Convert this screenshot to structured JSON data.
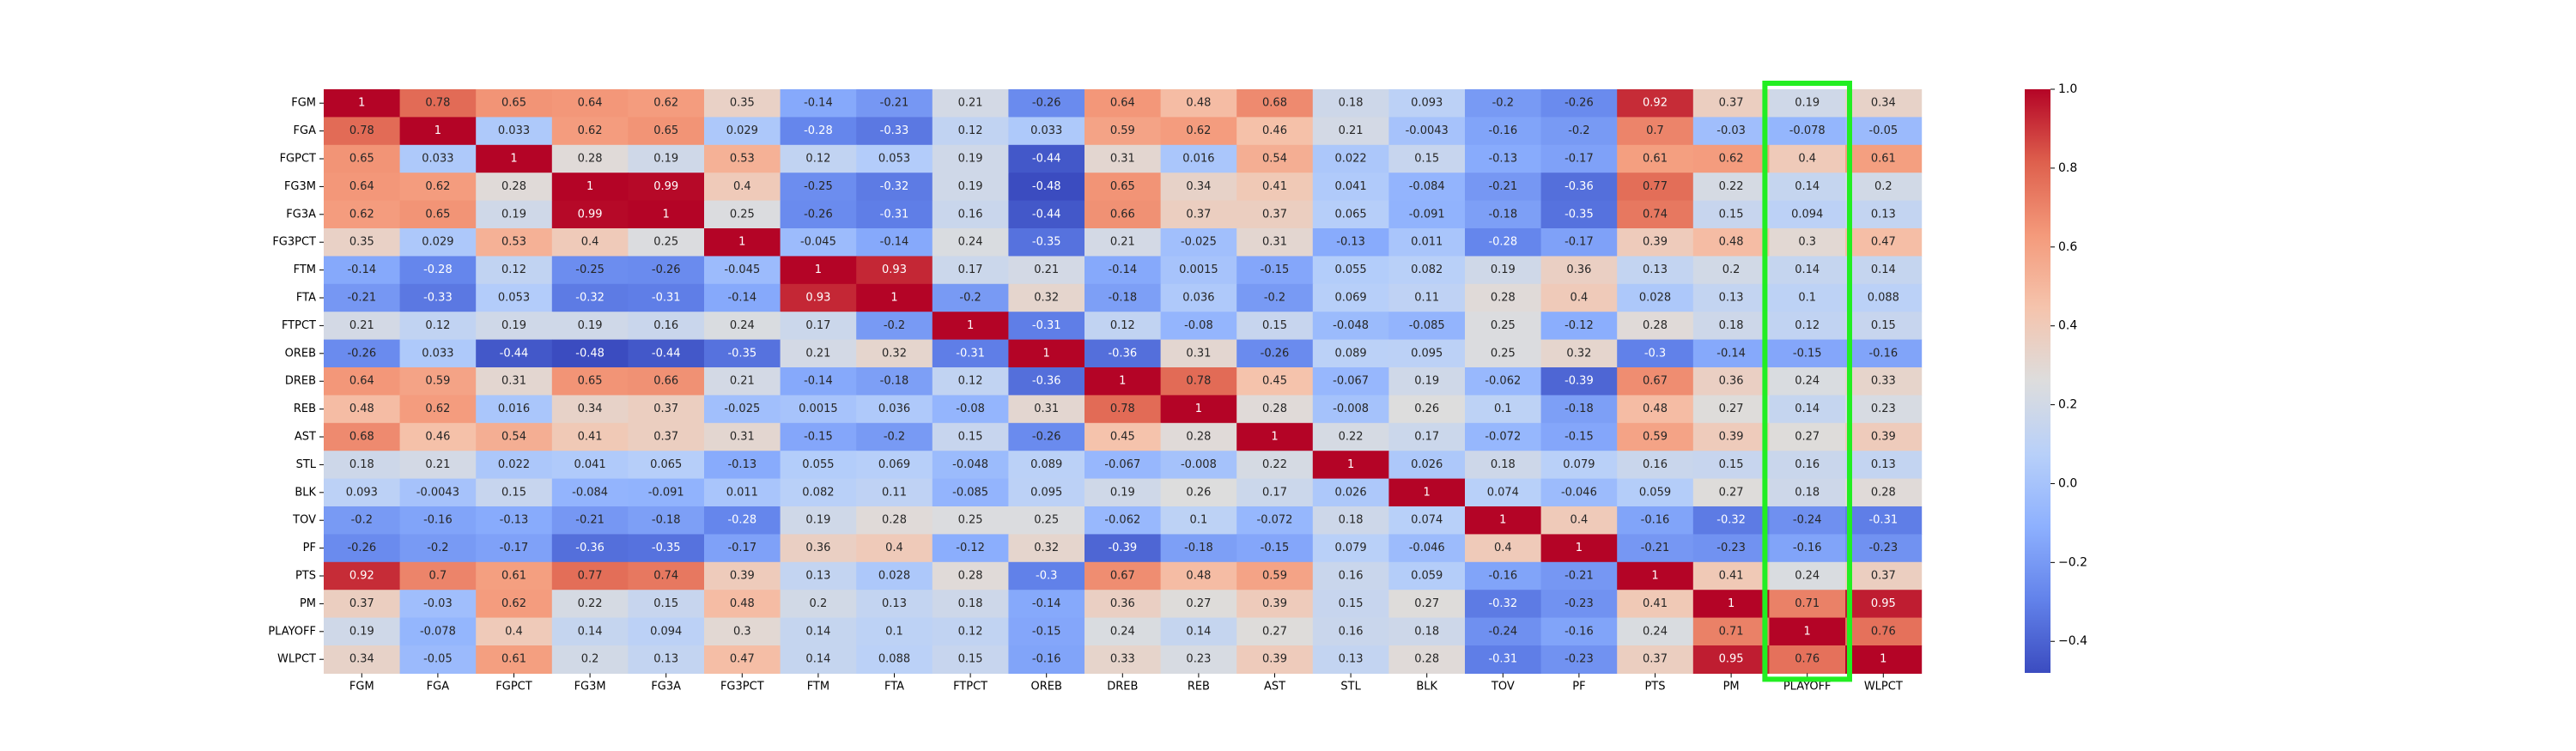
{
  "chart_data": {
    "type": "heatmap",
    "title": "",
    "xlabel": "",
    "ylabel": "",
    "labels": [
      "FGM",
      "FGA",
      "FGPCT",
      "FG3M",
      "FG3A",
      "FG3PCT",
      "FTM",
      "FTA",
      "FTPCT",
      "OREB",
      "DREB",
      "REB",
      "AST",
      "STL",
      "BLK",
      "TOV",
      "PF",
      "PTS",
      "PM",
      "PLAYOFF",
      "WLPCT"
    ],
    "matrix": [
      [
        "1",
        "0.78",
        "0.65",
        "0.64",
        "0.62",
        "0.35",
        "-0.14",
        "-0.21",
        "0.21",
        "-0.26",
        "0.64",
        "0.48",
        "0.68",
        "0.18",
        "0.093",
        "-0.2",
        "-0.26",
        "0.92",
        "0.37",
        "0.19",
        "0.34"
      ],
      [
        "0.78",
        "1",
        "0.033",
        "0.62",
        "0.65",
        "0.029",
        "-0.28",
        "-0.33",
        "0.12",
        "0.033",
        "0.59",
        "0.62",
        "0.46",
        "0.21",
        "-0.0043",
        "-0.16",
        "-0.2",
        "0.7",
        "-0.03",
        "-0.078",
        "-0.05"
      ],
      [
        "0.65",
        "0.033",
        "1",
        "0.28",
        "0.19",
        "0.53",
        "0.12",
        "0.053",
        "0.19",
        "-0.44",
        "0.31",
        "0.016",
        "0.54",
        "0.022",
        "0.15",
        "-0.13",
        "-0.17",
        "0.61",
        "0.62",
        "0.4",
        "0.61"
      ],
      [
        "0.64",
        "0.62",
        "0.28",
        "1",
        "0.99",
        "0.4",
        "-0.25",
        "-0.32",
        "0.19",
        "-0.48",
        "0.65",
        "0.34",
        "0.41",
        "0.041",
        "-0.084",
        "-0.21",
        "-0.36",
        "0.77",
        "0.22",
        "0.14",
        "0.2"
      ],
      [
        "0.62",
        "0.65",
        "0.19",
        "0.99",
        "1",
        "0.25",
        "-0.26",
        "-0.31",
        "0.16",
        "-0.44",
        "0.66",
        "0.37",
        "0.37",
        "0.065",
        "-0.091",
        "-0.18",
        "-0.35",
        "0.74",
        "0.15",
        "0.094",
        "0.13"
      ],
      [
        "0.35",
        "0.029",
        "0.53",
        "0.4",
        "0.25",
        "1",
        "-0.045",
        "-0.14",
        "0.24",
        "-0.35",
        "0.21",
        "-0.025",
        "0.31",
        "-0.13",
        "0.011",
        "-0.28",
        "-0.17",
        "0.39",
        "0.48",
        "0.3",
        "0.47"
      ],
      [
        "-0.14",
        "-0.28",
        "0.12",
        "-0.25",
        "-0.26",
        "-0.045",
        "1",
        "0.93",
        "0.17",
        "0.21",
        "-0.14",
        "0.0015",
        "-0.15",
        "0.055",
        "0.082",
        "0.19",
        "0.36",
        "0.13",
        "0.2",
        "0.14",
        "0.14"
      ],
      [
        "-0.21",
        "-0.33",
        "0.053",
        "-0.32",
        "-0.31",
        "-0.14",
        "0.93",
        "1",
        "-0.2",
        "0.32",
        "-0.18",
        "0.036",
        "-0.2",
        "0.069",
        "0.11",
        "0.28",
        "0.4",
        "0.028",
        "0.13",
        "0.1",
        "0.088"
      ],
      [
        "0.21",
        "0.12",
        "0.19",
        "0.19",
        "0.16",
        "0.24",
        "0.17",
        "-0.2",
        "1",
        "-0.31",
        "0.12",
        "-0.08",
        "0.15",
        "-0.048",
        "-0.085",
        "0.25",
        "-0.12",
        "0.28",
        "0.18",
        "0.12",
        "0.15"
      ],
      [
        "-0.26",
        "0.033",
        "-0.44",
        "-0.48",
        "-0.44",
        "-0.35",
        "0.21",
        "0.32",
        "-0.31",
        "1",
        "-0.36",
        "0.31",
        "-0.26",
        "0.089",
        "0.095",
        "0.25",
        "0.32",
        "-0.3",
        "-0.14",
        "-0.15",
        "-0.16"
      ],
      [
        "0.64",
        "0.59",
        "0.31",
        "0.65",
        "0.66",
        "0.21",
        "-0.14",
        "-0.18",
        "0.12",
        "-0.36",
        "1",
        "0.78",
        "0.45",
        "-0.067",
        "0.19",
        "-0.062",
        "-0.39",
        "0.67",
        "0.36",
        "0.24",
        "0.33"
      ],
      [
        "0.48",
        "0.62",
        "0.016",
        "0.34",
        "0.37",
        "-0.025",
        "0.0015",
        "0.036",
        "-0.08",
        "0.31",
        "0.78",
        "1",
        "0.28",
        "-0.008",
        "0.26",
        "0.1",
        "-0.18",
        "0.48",
        "0.27",
        "0.14",
        "0.23"
      ],
      [
        "0.68",
        "0.46",
        "0.54",
        "0.41",
        "0.37",
        "0.31",
        "-0.15",
        "-0.2",
        "0.15",
        "-0.26",
        "0.45",
        "0.28",
        "1",
        "0.22",
        "0.17",
        "-0.072",
        "-0.15",
        "0.59",
        "0.39",
        "0.27",
        "0.39"
      ],
      [
        "0.18",
        "0.21",
        "0.022",
        "0.041",
        "0.065",
        "-0.13",
        "0.055",
        "0.069",
        "-0.048",
        "0.089",
        "-0.067",
        "-0.008",
        "0.22",
        "1",
        "0.026",
        "0.18",
        "0.079",
        "0.16",
        "0.15",
        "0.16",
        "0.13"
      ],
      [
        "0.093",
        "-0.0043",
        "0.15",
        "-0.084",
        "-0.091",
        "0.011",
        "0.082",
        "0.11",
        "-0.085",
        "0.095",
        "0.19",
        "0.26",
        "0.17",
        "0.026",
        "1",
        "0.074",
        "-0.046",
        "0.059",
        "0.27",
        "0.18",
        "0.28"
      ],
      [
        "-0.2",
        "-0.16",
        "-0.13",
        "-0.21",
        "-0.18",
        "-0.28",
        "0.19",
        "0.28",
        "0.25",
        "0.25",
        "-0.062",
        "0.1",
        "-0.072",
        "0.18",
        "0.074",
        "1",
        "0.4",
        "-0.16",
        "-0.32",
        "-0.24",
        "-0.31"
      ],
      [
        "-0.26",
        "-0.2",
        "-0.17",
        "-0.36",
        "-0.35",
        "-0.17",
        "0.36",
        "0.4",
        "-0.12",
        "0.32",
        "-0.39",
        "-0.18",
        "-0.15",
        "0.079",
        "-0.046",
        "0.4",
        "1",
        "-0.21",
        "-0.23",
        "-0.16",
        "-0.23"
      ],
      [
        "0.92",
        "0.7",
        "0.61",
        "0.77",
        "0.74",
        "0.39",
        "0.13",
        "0.028",
        "0.28",
        "-0.3",
        "0.67",
        "0.48",
        "0.59",
        "0.16",
        "0.059",
        "-0.16",
        "-0.21",
        "1",
        "0.41",
        "0.24",
        "0.37"
      ],
      [
        "0.37",
        "-0.03",
        "0.62",
        "0.22",
        "0.15",
        "0.48",
        "0.2",
        "0.13",
        "0.18",
        "-0.14",
        "0.36",
        "0.27",
        "0.39",
        "0.15",
        "0.27",
        "-0.32",
        "-0.23",
        "0.41",
        "1",
        "0.71",
        "0.95"
      ],
      [
        "0.19",
        "-0.078",
        "0.4",
        "0.14",
        "0.094",
        "0.3",
        "0.14",
        "0.1",
        "0.12",
        "-0.15",
        "0.24",
        "0.14",
        "0.27",
        "0.16",
        "0.18",
        "-0.24",
        "-0.16",
        "0.24",
        "0.71",
        "1",
        "0.76"
      ],
      [
        "0.34",
        "-0.05",
        "0.61",
        "0.2",
        "0.13",
        "0.47",
        "0.14",
        "0.088",
        "0.15",
        "-0.16",
        "0.33",
        "0.23",
        "0.39",
        "0.13",
        "0.28",
        "-0.31",
        "-0.23",
        "0.37",
        "0.95",
        "0.76",
        "1"
      ]
    ],
    "colormap": "coolwarm",
    "vmin": -0.48,
    "vmax": 1.0,
    "colorbar_ticks": [
      "1.0",
      "0.8",
      "0.6",
      "0.4",
      "0.2",
      "0.0",
      "−0.2",
      "−0.4"
    ],
    "highlight": {
      "column": "PLAYOFF",
      "color": "#22ee22"
    }
  }
}
